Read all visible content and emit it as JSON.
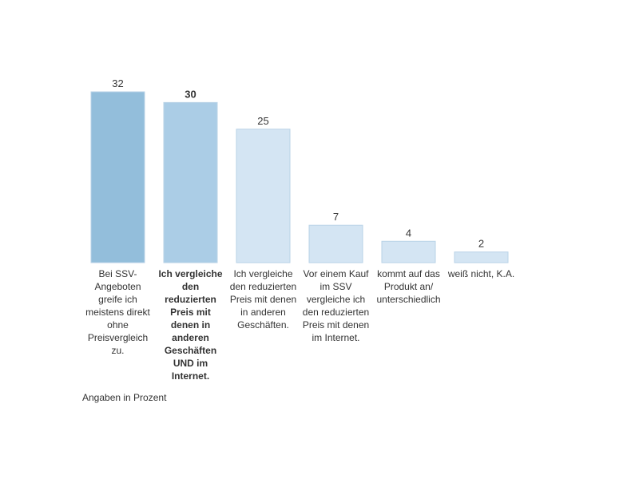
{
  "chart_data": {
    "type": "bar",
    "categories": [
      "Bei SSV-Angeboten greife ich meistens direkt ohne Preisvergleich zu.",
      "Ich vergleiche den reduzierten Preis mit denen in anderen Geschäften UND im Internet.",
      "Ich vergleiche den reduzierten Preis mit denen in anderen Geschäften.",
      "Vor einem Kauf im SSV vergleiche ich den reduzierten Preis mit denen im Internet.",
      "kommt auf das Produkt an/ unterschiedlich",
      "weiß nicht, K.A."
    ],
    "values": [
      32,
      30,
      25,
      7,
      4,
      2
    ],
    "bar_colors": [
      "#93bedb",
      "#abcde6",
      "#d4e5f3",
      "#d4e5f3",
      "#d4e5f3",
      "#d4e5f3"
    ],
    "bold_index": 1,
    "ylim": [
      0,
      32
    ],
    "grid": false,
    "footnote": "Angaben in Prozent"
  }
}
